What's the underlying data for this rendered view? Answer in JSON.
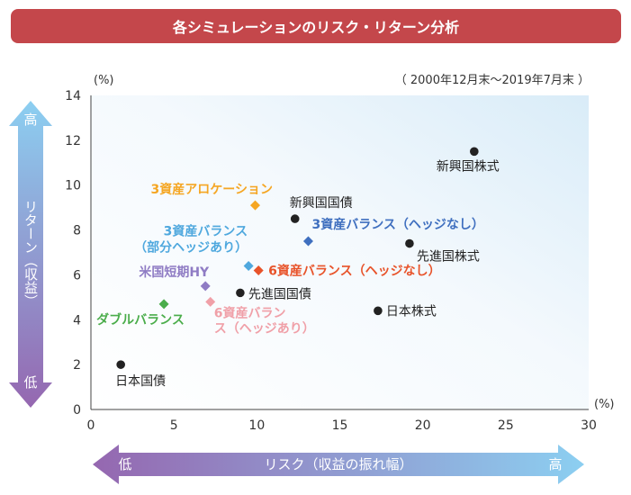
{
  "header": {
    "title": "各シミュレーションのリスク・リターン分析"
  },
  "chart_data": {
    "type": "scatter",
    "title": "各シミュレーションのリスク・リターン分析",
    "period": "（ 2000年12月末～2019年7月末 ）",
    "x_unit": "(%)",
    "y_unit": "(%)",
    "xlim": [
      0,
      30
    ],
    "ylim": [
      0,
      14
    ],
    "x_ticks": [
      0,
      5,
      10,
      15,
      20,
      25,
      30
    ],
    "y_ticks": [
      0,
      2,
      4,
      6,
      8,
      10,
      12,
      14
    ],
    "grid": false,
    "y_arrow": {
      "label": "リターン（収益）",
      "high": "高",
      "low": "低"
    },
    "x_arrow": {
      "label": "リスク（収益の振れ幅）",
      "low": "低",
      "high": "高"
    },
    "points": [
      {
        "label": "日本国債",
        "x": 1.8,
        "y": 2.0,
        "marker": "circle",
        "color": "#222222"
      },
      {
        "label": "新興国株式",
        "x": 23.1,
        "y": 11.5,
        "marker": "circle",
        "color": "#222222"
      },
      {
        "label": "新興国国債",
        "x": 12.3,
        "y": 8.5,
        "marker": "circle",
        "color": "#222222"
      },
      {
        "label": "先進国株式",
        "x": 19.2,
        "y": 7.4,
        "marker": "circle",
        "color": "#222222"
      },
      {
        "label": "日本株式",
        "x": 17.3,
        "y": 4.4,
        "marker": "circle",
        "color": "#222222"
      },
      {
        "label": "先進国国債",
        "x": 9.0,
        "y": 5.2,
        "marker": "circle",
        "color": "#222222"
      },
      {
        "label": "3資産アロケーション",
        "x": 9.9,
        "y": 9.1,
        "marker": "diamond",
        "color": "#f5a623"
      },
      {
        "label": "3資産バランス（ヘッジなし）",
        "x": 13.1,
        "y": 7.5,
        "marker": "diamond",
        "color": "#3f6fbf"
      },
      {
        "label": "3資産バランス（部分ヘッジあり）",
        "x": 9.5,
        "y": 6.4,
        "marker": "diamond",
        "color": "#4fa8de"
      },
      {
        "label": "6資産バランス（ヘッジなし）",
        "x": 10.1,
        "y": 6.2,
        "marker": "diamond",
        "color": "#e8532a"
      },
      {
        "label": "米国短期HY",
        "x": 6.9,
        "y": 5.5,
        "marker": "diamond",
        "color": "#8f7cc4"
      },
      {
        "label": "6資産バランス（ヘッジあり）",
        "x": 7.2,
        "y": 4.8,
        "marker": "diamond",
        "color": "#f0a0a8"
      },
      {
        "label": "ダブルバランス",
        "x": 4.4,
        "y": 4.7,
        "marker": "diamond",
        "color": "#4bad4b"
      }
    ]
  }
}
